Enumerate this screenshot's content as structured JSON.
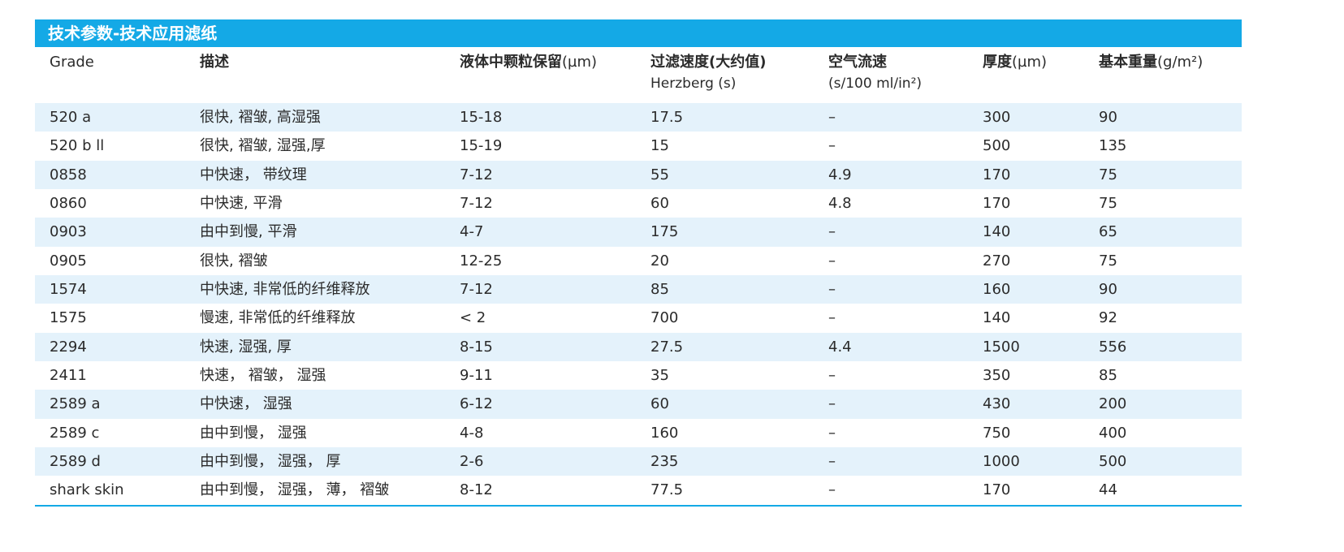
{
  "title": "技术参数-技术应用滤纸",
  "headers": {
    "grade": "Grade",
    "description": "描述",
    "retention_zh": "液体中颗粒保留",
    "retention_unit": "(µm)",
    "speed_zh": "过滤速度(大约值)",
    "speed_sub": "Herzberg (s)",
    "air_zh": "空气流速",
    "air_sub": "(s/100 ml/in²)",
    "thickness_zh": "厚度",
    "thickness_unit": "(µm)",
    "weight_zh": "基本重量",
    "weight_unit": "(g/m²)"
  },
  "rows": [
    {
      "grade": "520 a",
      "desc": "很快, 褶皱, 高湿强",
      "retention": "15-18",
      "speed": "17.5",
      "air": "–",
      "thickness": "300",
      "weight": "90"
    },
    {
      "grade": "520 b ll",
      "desc": "很快, 褶皱, 湿强,厚",
      "retention": "15-19",
      "speed": "15",
      "air": "–",
      "thickness": "500",
      "weight": "135"
    },
    {
      "grade": "0858",
      "desc": "中快速， 带纹理",
      "retention": "7-12",
      "speed": "55",
      "air": "4.9",
      "thickness": "170",
      "weight": "75"
    },
    {
      "grade": "0860",
      "desc": "中快速, 平滑",
      "retention": "7-12",
      "speed": "60",
      "air": "4.8",
      "thickness": "170",
      "weight": "75"
    },
    {
      "grade": "0903",
      "desc": "由中到慢, 平滑",
      "retention": "4-7",
      "speed": "175",
      "air": "–",
      "thickness": "140",
      "weight": "65"
    },
    {
      "grade": "0905",
      "desc": "很快, 褶皱",
      "retention": "12-25",
      "speed": "20",
      "air": "–",
      "thickness": "270",
      "weight": "75"
    },
    {
      "grade": "1574",
      "desc": "中快速, 非常低的纤维释放",
      "retention": "7-12",
      "speed": "85",
      "air": "–",
      "thickness": "160",
      "weight": "90"
    },
    {
      "grade": "1575",
      "desc": "慢速, 非常低的纤维释放",
      "retention": "< 2",
      "speed": "700",
      "air": "–",
      "thickness": "140",
      "weight": "92"
    },
    {
      "grade": "2294",
      "desc": "快速, 湿强, 厚",
      "retention": "8-15",
      "speed": "27.5",
      "air": "4.4",
      "thickness": "1500",
      "weight": "556"
    },
    {
      "grade": "2411",
      "desc": "快速， 褶皱， 湿强",
      "retention": "9-11",
      "speed": "35",
      "air": "–",
      "thickness": "350",
      "weight": "85"
    },
    {
      "grade": "2589 a",
      "desc": "中快速， 湿强",
      "retention": "6-12",
      "speed": "60",
      "air": "–",
      "thickness": "430",
      "weight": "200"
    },
    {
      "grade": "2589 c",
      "desc": "由中到慢， 湿强",
      "retention": "4-8",
      "speed": "160",
      "air": "–",
      "thickness": "750",
      "weight": "400"
    },
    {
      "grade": "2589 d",
      "desc": "由中到慢， 湿强， 厚",
      "retention": "2-6",
      "speed": "235",
      "air": "–",
      "thickness": "1000",
      "weight": "500"
    },
    {
      "grade": "shark skin",
      "desc": "由中到慢， 湿强， 薄， 褶皱",
      "retention": "8-12",
      "speed": "77.5",
      "air": "–",
      "thickness": "170",
      "weight": "44"
    }
  ],
  "colors": {
    "accent": "#14a9e6",
    "row_shade": "#e4f2fb",
    "text": "#2b2b2b"
  }
}
